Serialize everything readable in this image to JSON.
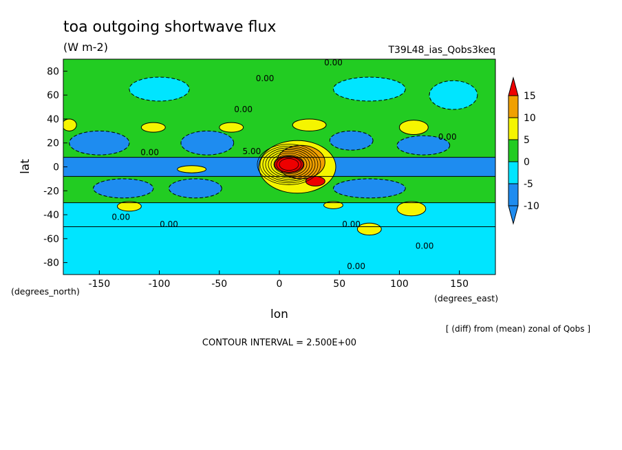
{
  "chart_data": {
    "type": "heatmap",
    "title": "toa outgoing shortwave flux",
    "subtitle": "(W m-2)",
    "run_label": "T39L48_ias_Qobs3keq",
    "xlabel": "lon",
    "ylabel": "lat",
    "x_unit_label": "(degrees_east)",
    "y_unit_label": "(degrees_north)",
    "xlim": [
      -180,
      180
    ],
    "ylim": [
      -90,
      90
    ],
    "x_ticks": [
      -150,
      -100,
      -50,
      0,
      50,
      100,
      150
    ],
    "x_tick_labels": [
      "-150",
      "-100",
      "-50",
      "0",
      "50",
      "100",
      "150"
    ],
    "y_ticks": [
      80,
      60,
      40,
      20,
      0,
      -20,
      -40,
      -60,
      -80
    ],
    "y_tick_labels": [
      "80",
      "60",
      "40",
      "20",
      "0",
      "-20",
      "-40",
      "-60",
      "-80"
    ],
    "note": "[ (diff) from (mean) zonal of Qobs ]",
    "contour_interval": "CONTOUR INTERVAL = 2.500E+00",
    "colorbar": {
      "ticks": [
        "15",
        "10",
        "5",
        "0",
        "-5",
        "-10"
      ],
      "bins": [
        {
          "range": [
            15,
            99
          ],
          "color": "#ee0000"
        },
        {
          "range": [
            10,
            15
          ],
          "color": "#f0a000"
        },
        {
          "range": [
            5,
            10
          ],
          "color": "#f5f500"
        },
        {
          "range": [
            0,
            5
          ],
          "color": "#22cc22"
        },
        {
          "range": [
            -5,
            0
          ],
          "color": "#00e5ff"
        },
        {
          "range": [
            -10,
            -5
          ],
          "color": "#1e8cf0"
        },
        {
          "range": [
            -99,
            -10
          ],
          "color": "#1e8cf0"
        }
      ]
    },
    "contour_labels": [
      {
        "lon": 45,
        "lat": 87,
        "text": "0.00"
      },
      {
        "lon": -12,
        "lat": 74,
        "text": "0.00"
      },
      {
        "lon": -30,
        "lat": 48,
        "text": "0.00"
      },
      {
        "lon": -108,
        "lat": 12,
        "text": "0.00"
      },
      {
        "lon": -23,
        "lat": 13,
        "text": "5.00"
      },
      {
        "lon": 140,
        "lat": 25,
        "text": "0.00"
      },
      {
        "lon": -132,
        "lat": -42,
        "text": "0.00"
      },
      {
        "lon": -92,
        "lat": -48,
        "text": "0.00"
      },
      {
        "lon": 60,
        "lat": -48,
        "text": "0.00"
      },
      {
        "lon": 121,
        "lat": -66,
        "text": "0.00"
      },
      {
        "lon": 64,
        "lat": -83,
        "text": "0.00"
      }
    ],
    "field_features": [
      {
        "type": "background",
        "value": -2.5
      },
      {
        "type": "band",
        "lat_min": -30,
        "lat_max": 90,
        "value": 2.5
      },
      {
        "type": "band",
        "lat_min": -90,
        "lat_max": -50,
        "value": -2.5
      },
      {
        "type": "band",
        "lat_min": -8,
        "lat_max": 8,
        "value": -7.5
      },
      {
        "type": "blob",
        "lon": -100,
        "lat": 65,
        "rx": 25,
        "ry": 10,
        "value": -2.5
      },
      {
        "type": "blob",
        "lon": 75,
        "lat": 65,
        "rx": 30,
        "ry": 10,
        "value": -2.5
      },
      {
        "type": "blob",
        "lon": 145,
        "lat": 60,
        "rx": 20,
        "ry": 12,
        "value": -2.5
      },
      {
        "type": "blob",
        "lon": -150,
        "lat": 20,
        "rx": 25,
        "ry": 10,
        "value": -7.5
      },
      {
        "type": "blob",
        "lon": -60,
        "lat": 20,
        "rx": 22,
        "ry": 10,
        "value": -7.5
      },
      {
        "type": "blob",
        "lon": 60,
        "lat": 22,
        "rx": 18,
        "ry": 8,
        "value": -7.5
      },
      {
        "type": "blob",
        "lon": 120,
        "lat": 18,
        "rx": 22,
        "ry": 8,
        "value": -7.5
      },
      {
        "type": "blob",
        "lon": -130,
        "lat": -18,
        "rx": 25,
        "ry": 8,
        "value": -7.5
      },
      {
        "type": "blob",
        "lon": -70,
        "lat": -18,
        "rx": 22,
        "ry": 8,
        "value": -7.5
      },
      {
        "type": "blob",
        "lon": 75,
        "lat": -18,
        "rx": 30,
        "ry": 8,
        "value": -7.5
      },
      {
        "type": "blob",
        "lon": -105,
        "lat": 33,
        "rx": 10,
        "ry": 4,
        "value": 7.5
      },
      {
        "type": "blob",
        "lon": -40,
        "lat": 33,
        "rx": 10,
        "ry": 4,
        "value": 7.5
      },
      {
        "type": "blob",
        "lon": 25,
        "lat": 35,
        "rx": 14,
        "ry": 5,
        "value": 7.5
      },
      {
        "type": "blob",
        "lon": 112,
        "lat": 33,
        "rx": 12,
        "ry": 6,
        "value": 7.5
      },
      {
        "type": "blob",
        "lon": -175,
        "lat": 35,
        "rx": 6,
        "ry": 5,
        "value": 7.5
      },
      {
        "type": "blob",
        "lon": -125,
        "lat": -33,
        "rx": 10,
        "ry": 4,
        "value": 7.5
      },
      {
        "type": "blob",
        "lon": 110,
        "lat": -35,
        "rx": 12,
        "ry": 6,
        "value": 7.5
      },
      {
        "type": "blob",
        "lon": 75,
        "lat": -52,
        "rx": 10,
        "ry": 5,
        "value": 7.5
      },
      {
        "type": "blob",
        "lon": 45,
        "lat": -32,
        "rx": 8,
        "ry": 3,
        "value": 7.5
      },
      {
        "type": "blob",
        "lon": -73,
        "lat": -2,
        "rx": 12,
        "ry": 3,
        "value": 7.5
      },
      {
        "type": "blob",
        "lon": 15,
        "lat": 0,
        "rx": 32,
        "ry": 22,
        "value": 7.5
      },
      {
        "type": "blob",
        "lon": 18,
        "lat": 4,
        "rx": 20,
        "ry": 14,
        "value": 12.5
      },
      {
        "type": "blob",
        "lon": 8,
        "lat": 2,
        "rx": 12,
        "ry": 7,
        "value": 20
      },
      {
        "type": "blob",
        "lon": 30,
        "lat": -12,
        "rx": 8,
        "ry": 4,
        "value": 20
      }
    ]
  }
}
